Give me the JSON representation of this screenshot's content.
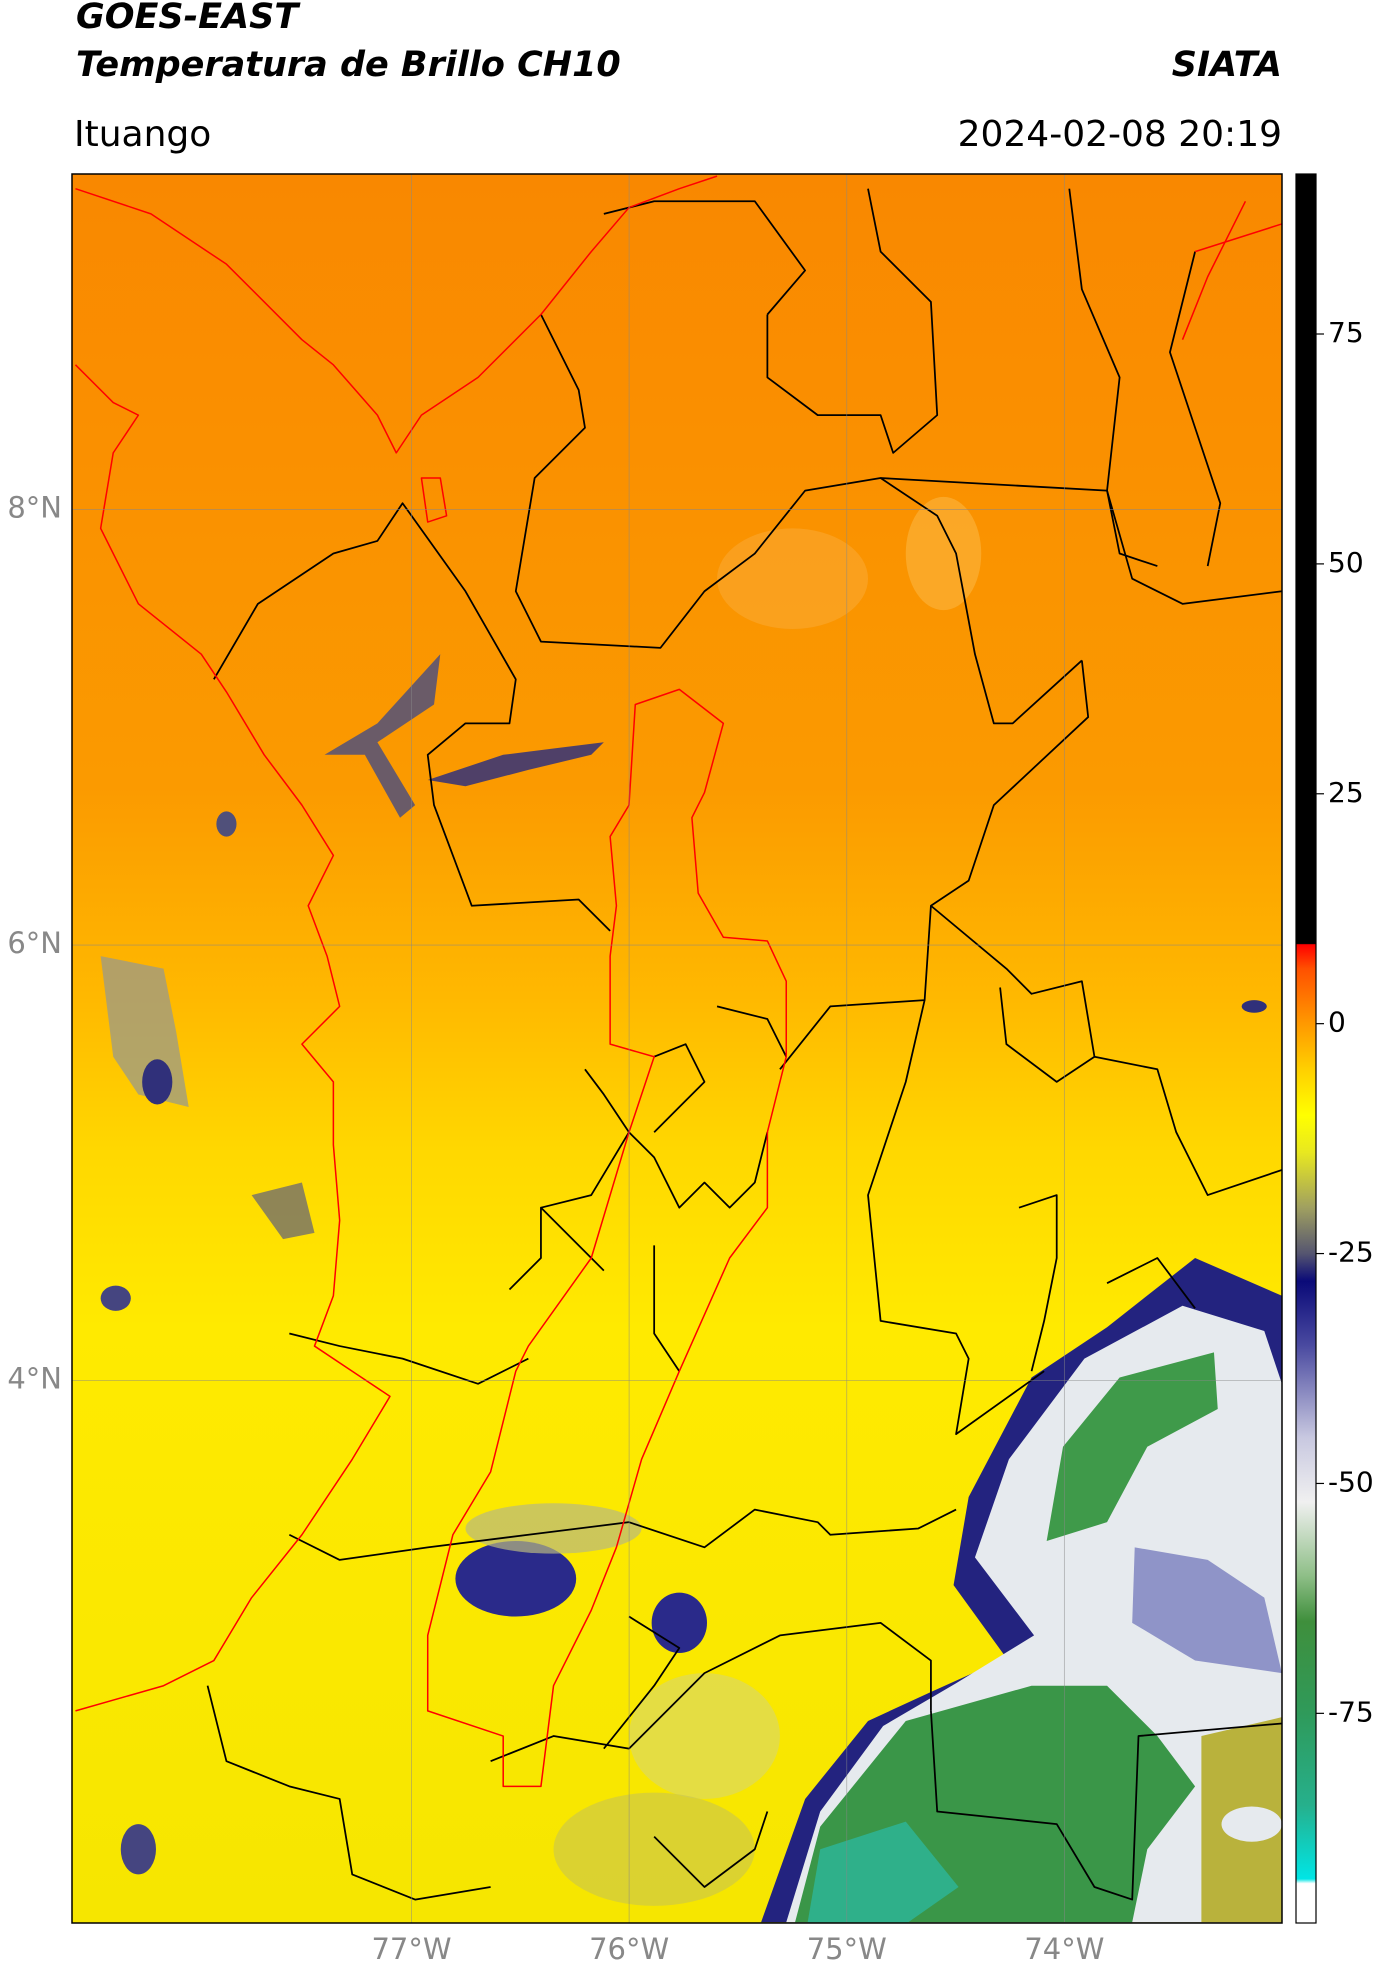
{
  "header": {
    "title": "GOES-EAST",
    "subtitle": "Temperatura de Brillo CH10",
    "source": "SIATA",
    "location": "Ituango",
    "timestamp": "2024-02-08 20:19"
  },
  "chart_data": {
    "type": "map",
    "xlim": [
      -78.56,
      -73.0
    ],
    "ylim": [
      1.51,
      9.54
    ],
    "xticks": [
      {
        "value": -77,
        "label": "77°W"
      },
      {
        "value": -76,
        "label": "76°W"
      },
      {
        "value": -75,
        "label": "75°W"
      },
      {
        "value": -74,
        "label": "74°W"
      }
    ],
    "yticks": [
      {
        "value": 4,
        "label": "4°N"
      },
      {
        "value": 6,
        "label": "6°N"
      },
      {
        "value": 8,
        "label": "8°N"
      }
    ],
    "grid": true,
    "colorbar": {
      "ylim": [
        -97.8,
        92.4
      ],
      "yticks": [
        -75,
        -50,
        -25,
        0,
        25,
        50,
        75
      ],
      "stops": [
        {
          "value": -97.8,
          "color": "#ffffff"
        },
        {
          "value": -93.5,
          "color": "#ffffff"
        },
        {
          "value": -93,
          "color": "#00e5e5"
        },
        {
          "value": -85,
          "color": "#26b08c"
        },
        {
          "value": -75,
          "color": "#2f9a5a"
        },
        {
          "value": -65,
          "color": "#3f8f3c"
        },
        {
          "value": -60,
          "color": "#8fbf88"
        },
        {
          "value": -52,
          "color": "#f0f0f0"
        },
        {
          "value": -45,
          "color": "#c8c8e0"
        },
        {
          "value": -35,
          "color": "#4a4aa0"
        },
        {
          "value": -28,
          "color": "#0a0a78"
        },
        {
          "value": -25,
          "color": "#555570"
        },
        {
          "value": -20,
          "color": "#a0a060"
        },
        {
          "value": -14,
          "color": "#e8e820"
        },
        {
          "value": -10,
          "color": "#ffff00"
        },
        {
          "value": -5,
          "color": "#ffd000"
        },
        {
          "value": 0,
          "color": "#ff9900"
        },
        {
          "value": 6,
          "color": "#ff5000"
        },
        {
          "value": 8.6,
          "color": "#ff0000"
        },
        {
          "value": 8.7,
          "color": "#000000"
        },
        {
          "value": 92.4,
          "color": "#000000"
        }
      ]
    }
  }
}
